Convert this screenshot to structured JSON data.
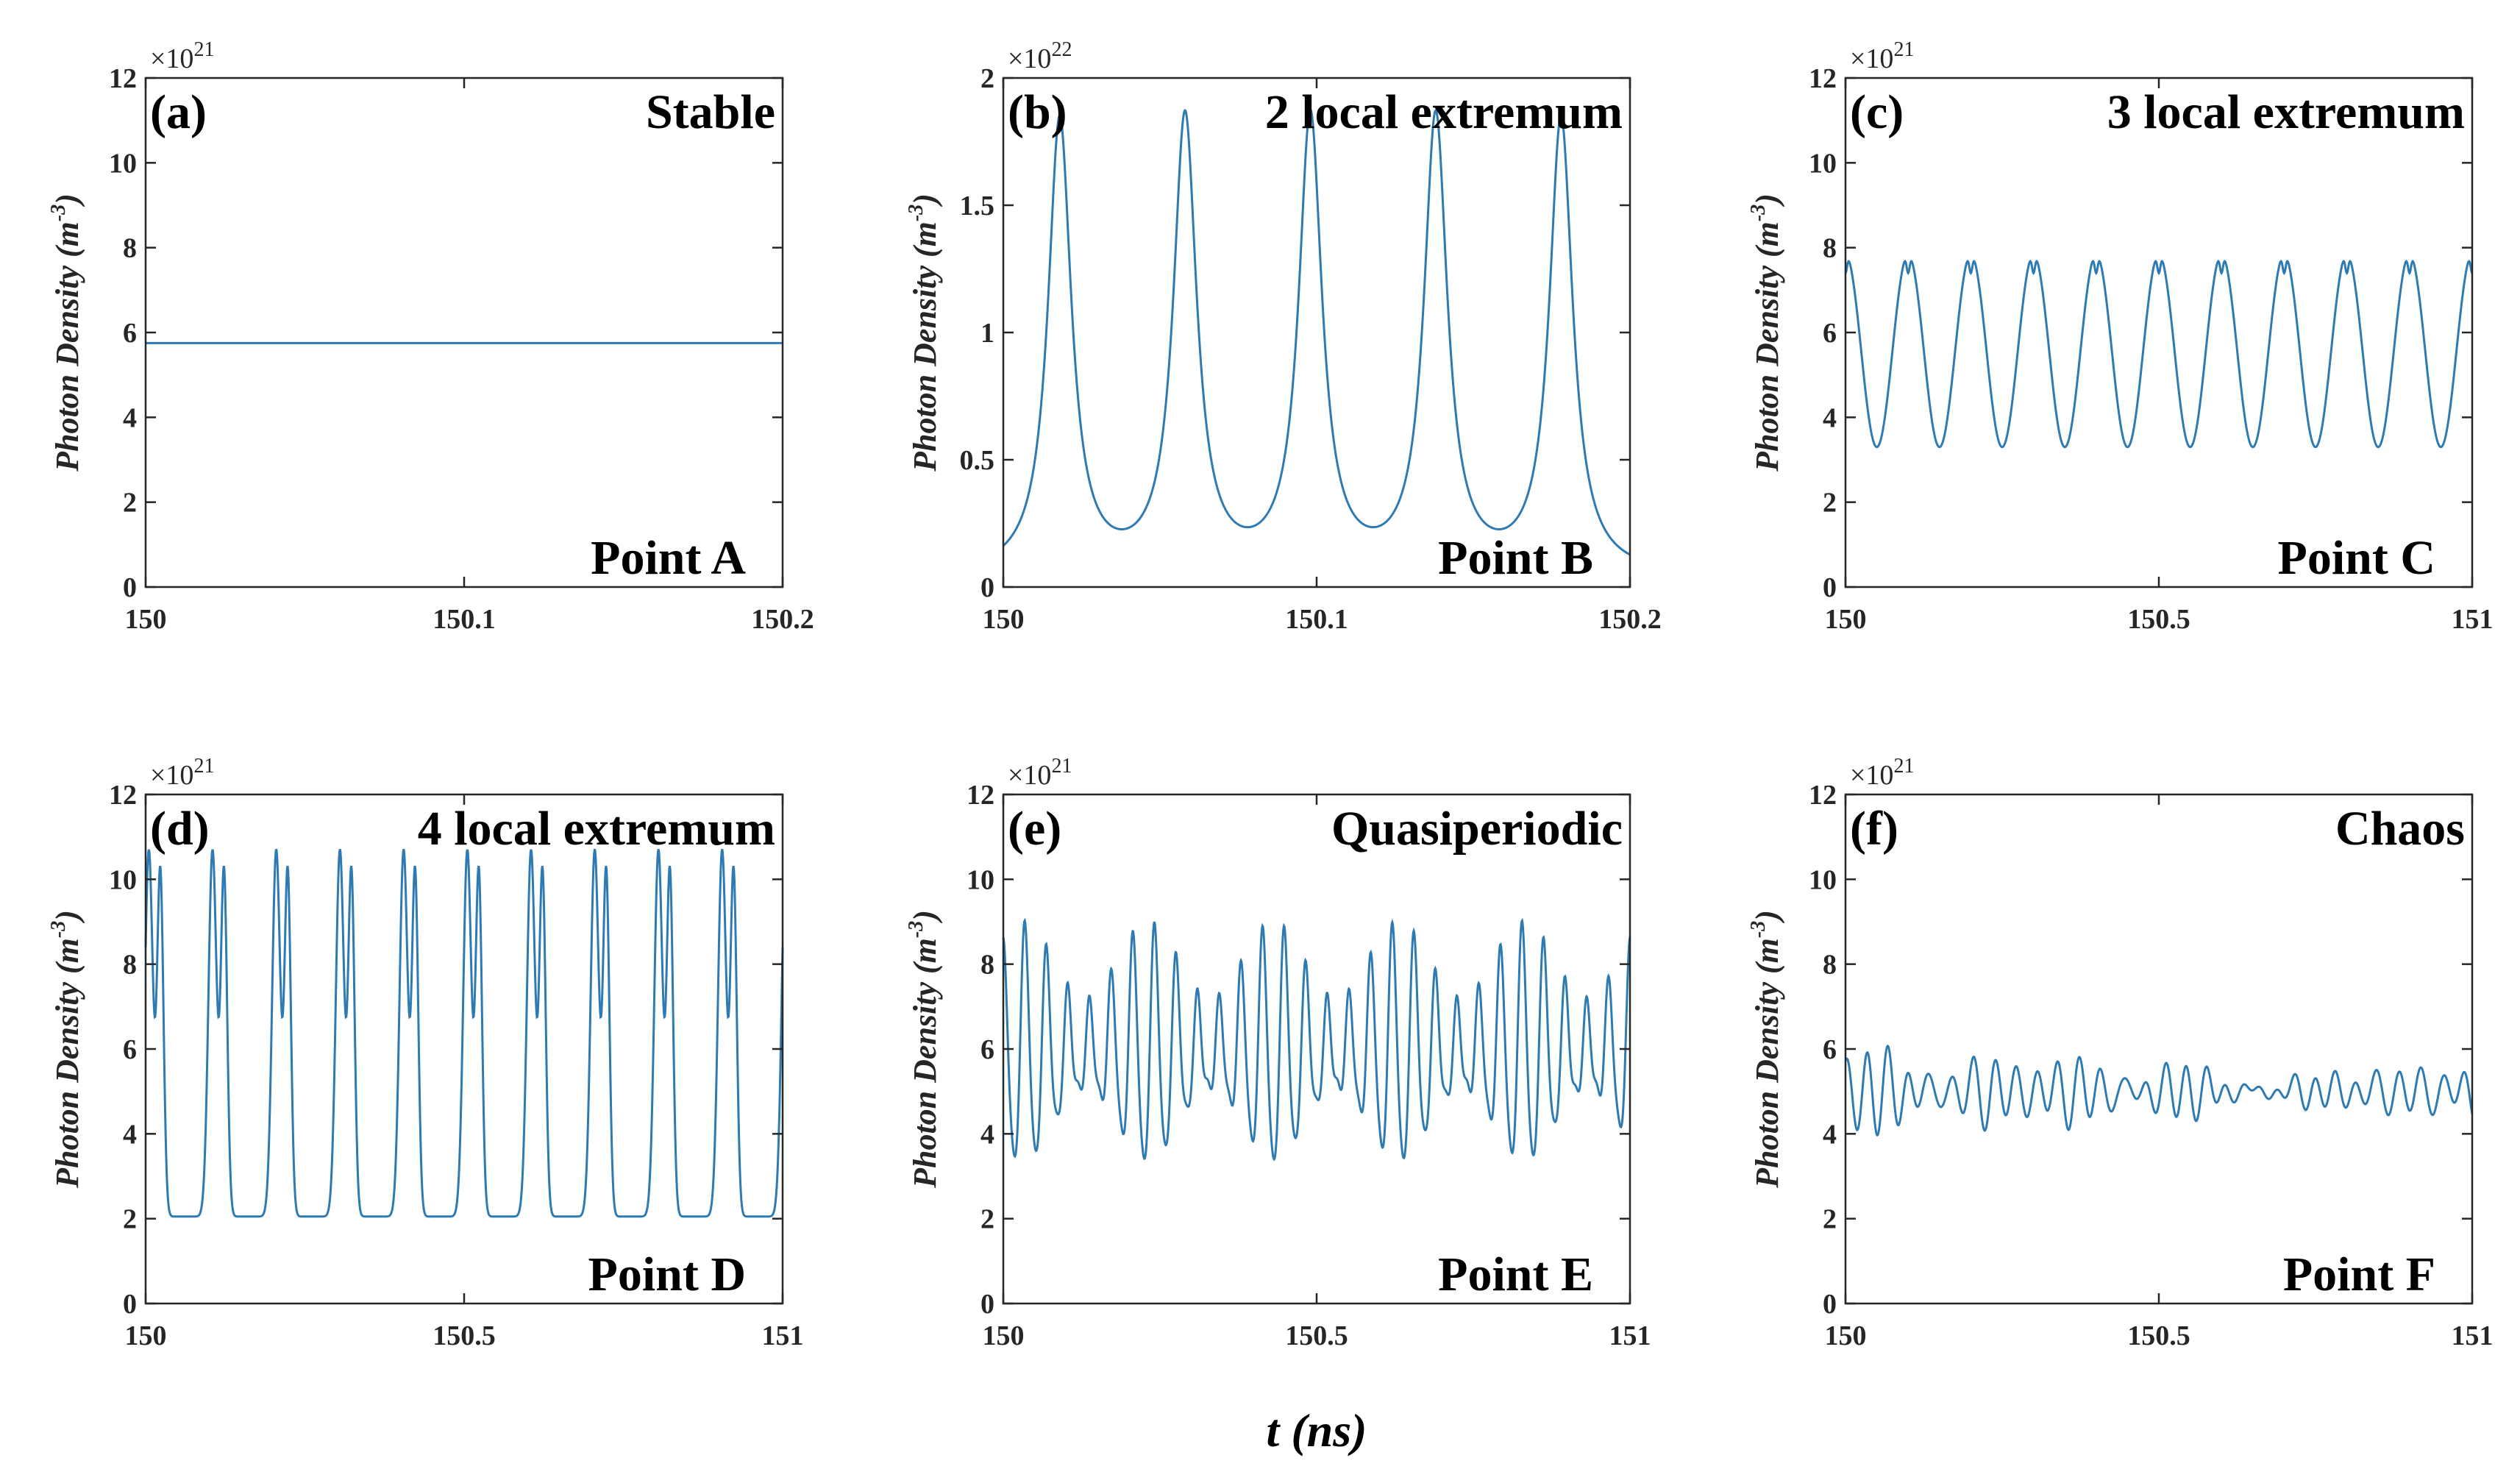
{
  "figure": {
    "xlabel": "t (ns)",
    "colors": {
      "series": "#2E7BB4",
      "axes": "#262626",
      "text": "#000000"
    }
  },
  "chart_data": [
    {
      "type": "line",
      "panel": "(a)",
      "title": "Stable",
      "annotation": "Point A",
      "ylabel": "Photon Density",
      "ylabel_unit": "(m",
      "ylabel_unit_exp": "-3",
      "ylabel_unit_close": ")",
      "multiplier": "×10",
      "multiplier_exp": "21",
      "xlim": [
        150,
        150.2
      ],
      "ylim": [
        0,
        12
      ],
      "xticks": [
        150,
        150.1,
        150.2
      ],
      "xtick_labels": [
        "150",
        "150.1",
        "150.2"
      ],
      "yticks": [
        0,
        2,
        4,
        6,
        8,
        10,
        12
      ],
      "ytick_labels": [
        "0",
        "2",
        "4",
        "6",
        "8",
        "10",
        "12"
      ],
      "signal": {
        "kind": "constant",
        "value": 5.75
      }
    },
    {
      "type": "line",
      "panel": "(b)",
      "title": "2 local extremum",
      "annotation": "Point B",
      "ylabel": "Photon Density",
      "ylabel_unit": "(m",
      "ylabel_unit_exp": "-3",
      "ylabel_unit_close": ")",
      "multiplier": "×10",
      "multiplier_exp": "22",
      "xlim": [
        150,
        150.2
      ],
      "ylim": [
        0,
        2
      ],
      "xticks": [
        150,
        150.1,
        150.2
      ],
      "xtick_labels": [
        "150",
        "150.1",
        "150.2"
      ],
      "yticks": [
        0,
        0.5,
        1,
        1.5,
        2
      ],
      "ytick_labels": [
        "0",
        "0.5",
        "1",
        "1.5",
        "2"
      ],
      "signal": {
        "kind": "pulses",
        "base": 0.04,
        "peak": 1.82,
        "peak_times": [
          150.018,
          150.058,
          150.098,
          150.138,
          150.178
        ],
        "width": 0.0045
      }
    },
    {
      "type": "line",
      "panel": "(c)",
      "title": "3 local extremum",
      "annotation": "Point C",
      "ylabel": "Photon Density",
      "ylabel_unit": "(m",
      "ylabel_unit_exp": "-3",
      "ylabel_unit_close": ")",
      "multiplier": "×10",
      "multiplier_exp": "21",
      "xlim": [
        150,
        151
      ],
      "ylim": [
        0,
        12
      ],
      "xticks": [
        150,
        150.5,
        151
      ],
      "xtick_labels": [
        "150",
        "150.5",
        "151"
      ],
      "yticks": [
        0,
        2,
        4,
        6,
        8,
        10,
        12
      ],
      "ytick_labels": [
        "0",
        "2",
        "4",
        "6",
        "8",
        "10",
        "12"
      ],
      "signal": {
        "kind": "double_hump",
        "period": 0.1,
        "phase": 0.0,
        "min": 3.3,
        "max": 7.85,
        "dip": 7.4
      }
    },
    {
      "type": "line",
      "panel": "(d)",
      "title": "4 local extremum",
      "annotation": "Point D",
      "ylabel": "Photon Density",
      "ylabel_unit": "(m",
      "ylabel_unit_exp": "-3",
      "ylabel_unit_close": ")",
      "multiplier": "×10",
      "multiplier_exp": "21",
      "xlim": [
        150,
        151
      ],
      "ylim": [
        0,
        12
      ],
      "xticks": [
        150,
        150.5,
        151
      ],
      "xtick_labels": [
        "150",
        "150.5",
        "151"
      ],
      "yticks": [
        0,
        2,
        4,
        6,
        8,
        10,
        12
      ],
      "ytick_labels": [
        "0",
        "2",
        "4",
        "6",
        "8",
        "10",
        "12"
      ],
      "signal": {
        "kind": "twin_peaks",
        "period": 0.1,
        "phase": 0.005,
        "min": 2.05,
        "peak1": 10.7,
        "peak2": 10.15,
        "inner_min": 7.0
      }
    },
    {
      "type": "line",
      "panel": "(e)",
      "title": "Quasiperiodic",
      "annotation": "Point E",
      "ylabel": "Photon Density",
      "ylabel_unit": "(m",
      "ylabel_unit_exp": "-3",
      "ylabel_unit_close": ")",
      "multiplier": "×10",
      "multiplier_exp": "21",
      "xlim": [
        150,
        151
      ],
      "ylim": [
        0,
        12
      ],
      "xticks": [
        150,
        150.5,
        151
      ],
      "xtick_labels": [
        "150",
        "150.5",
        "151"
      ],
      "yticks": [
        0,
        2,
        4,
        6,
        8,
        10,
        12
      ],
      "ytick_labels": [
        "0",
        "2",
        "4",
        "6",
        "8",
        "10",
        "12"
      ],
      "signal": {
        "kind": "quasi",
        "period": 0.0345,
        "mean": 5.9,
        "amp": 1.9,
        "mod_period": 0.2,
        "mod_amp": 0.9
      }
    },
    {
      "type": "line",
      "panel": "(f)",
      "title": "Chaos",
      "annotation": "Point F",
      "ylabel": "Photon Density",
      "ylabel_unit": "(m",
      "ylabel_unit_exp": "-3",
      "ylabel_unit_close": ")",
      "multiplier": "×10",
      "multiplier_exp": "21",
      "xlim": [
        150,
        151
      ],
      "ylim": [
        0,
        12
      ],
      "xticks": [
        150,
        150.5,
        151
      ],
      "xtick_labels": [
        "150",
        "150.5",
        "151"
      ],
      "yticks": [
        0,
        2,
        4,
        6,
        8,
        10,
        12
      ],
      "ytick_labels": [
        "0",
        "2",
        "4",
        "6",
        "8",
        "10",
        "12"
      ],
      "signal": {
        "kind": "chaos",
        "period": 0.034,
        "mean": 5.0,
        "amp": 0.75,
        "seed": 7
      }
    }
  ]
}
